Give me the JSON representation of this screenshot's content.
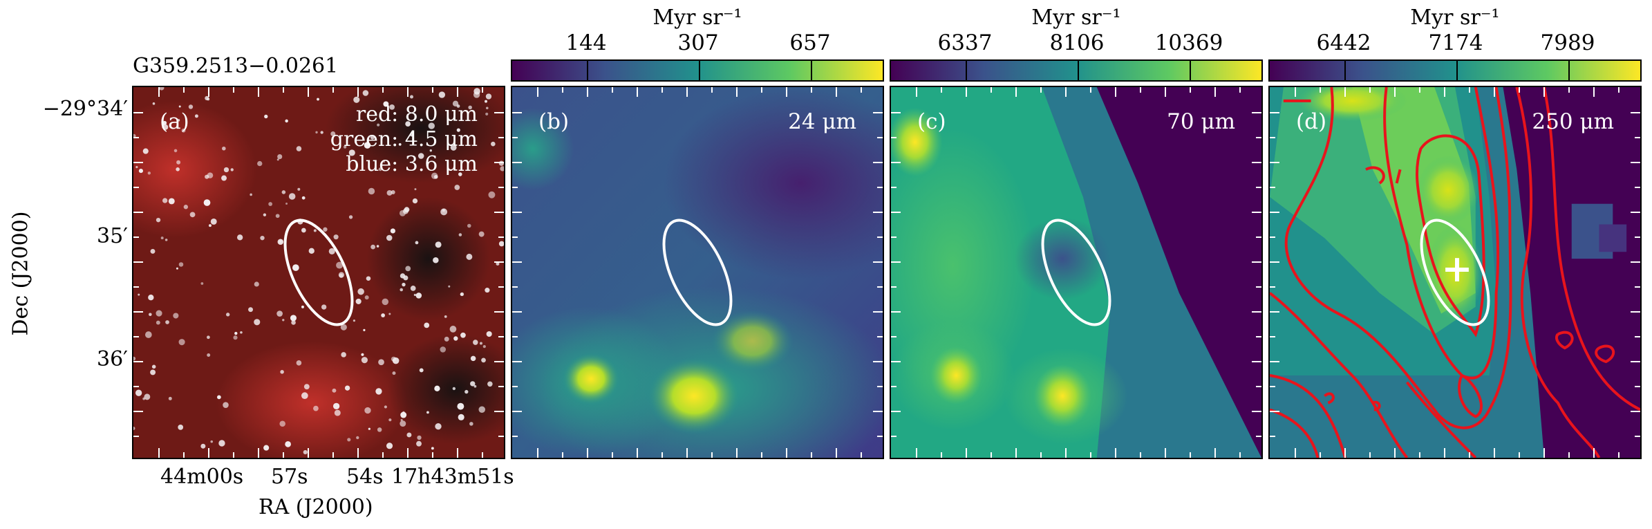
{
  "source_name": "G359.2513−0.0261",
  "axes": {
    "ylabel": "Dec (J2000)",
    "xlabel": "RA (J2000)",
    "yticks": [
      "−29°34′",
      "35′",
      "36′"
    ],
    "xticks": [
      "44m00s",
      "57s",
      "54s",
      "17h43m51s"
    ]
  },
  "colorbar_unit": "Myr sr⁻¹",
  "panels": [
    {
      "label": "(a)",
      "rgb": {
        "red": "red: 8.0 μm",
        "green": "green: 4.5 μm",
        "blue": "blue: 3.6 μm"
      }
    },
    {
      "label": "(b)",
      "wavelength": "24 μm",
      "colorbar_ticks": [
        "144",
        "307",
        "657"
      ]
    },
    {
      "label": "(c)",
      "wavelength": "70 μm",
      "colorbar_ticks": [
        "6337",
        "8106",
        "10369"
      ]
    },
    {
      "label": "(d)",
      "wavelength": "250 μm",
      "colorbar_ticks": [
        "6442",
        "7174",
        "7989"
      ]
    }
  ],
  "colors": {
    "ellipse": "#ffffff",
    "contour": "#e8141c",
    "viridis": [
      "#440154",
      "#3b528b",
      "#21918c",
      "#5ec962",
      "#fde725"
    ]
  }
}
